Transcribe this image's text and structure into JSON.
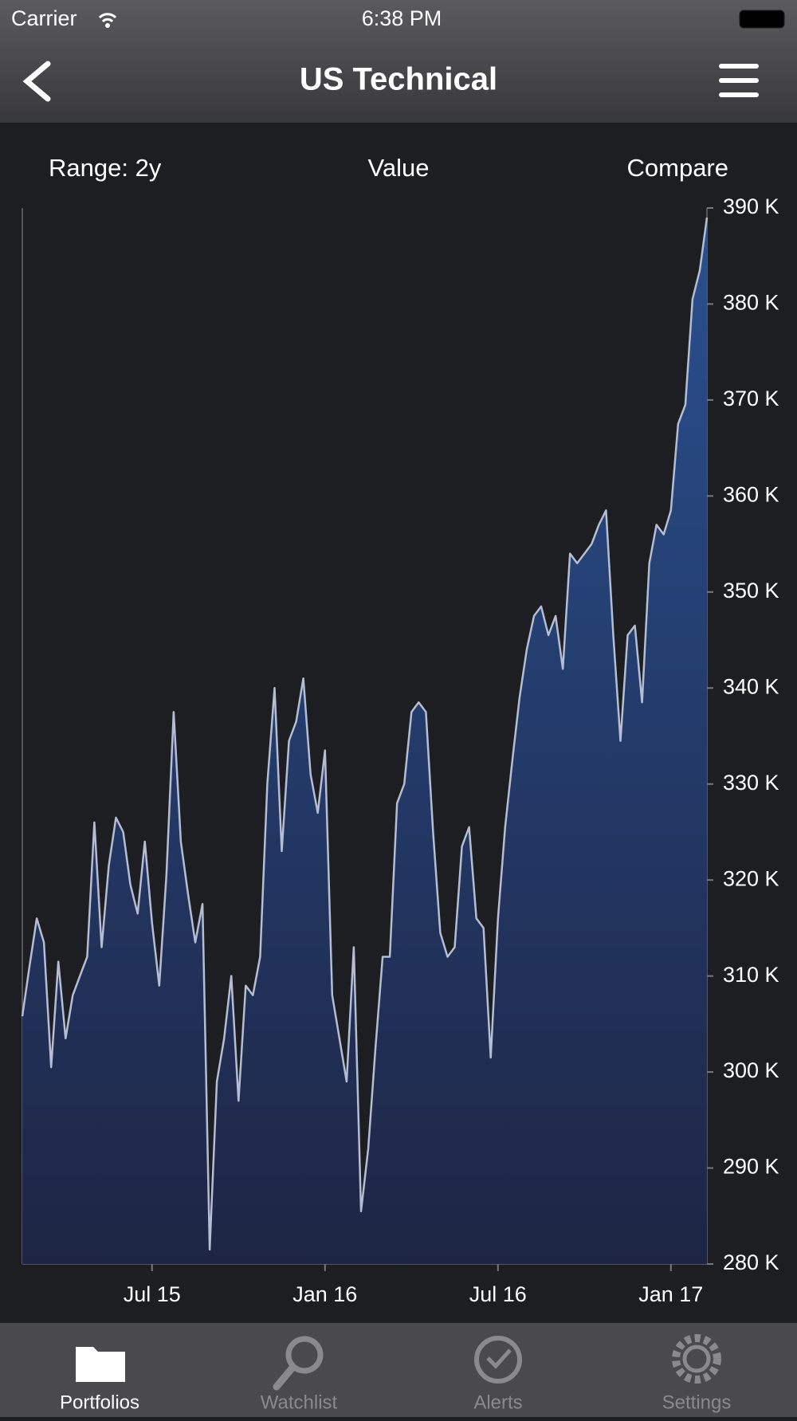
{
  "status_bar": {
    "carrier": "Carrier",
    "time": "6:38 PM"
  },
  "nav": {
    "title": "US Technical"
  },
  "controls": [
    "Range: 2y",
    "Value",
    "Compare"
  ],
  "chart_data": {
    "type": "area",
    "categories": [
      null,
      null,
      null,
      null,
      null,
      null,
      null,
      null,
      null,
      null,
      null,
      null,
      null,
      null,
      null,
      null,
      null,
      null,
      "Jul 15",
      null,
      null,
      null,
      null,
      null,
      null,
      null,
      null,
      null,
      null,
      null,
      null,
      null,
      null,
      null,
      null,
      null,
      null,
      null,
      null,
      null,
      null,
      null,
      "Jan 16",
      null,
      null,
      null,
      null,
      null,
      null,
      null,
      null,
      null,
      null,
      null,
      null,
      null,
      null,
      null,
      null,
      null,
      null,
      null,
      null,
      null,
      null,
      null,
      "Jul 16",
      null,
      null,
      null,
      null,
      null,
      null,
      null,
      null,
      null,
      null,
      null,
      null,
      null,
      null,
      null,
      null,
      null,
      null,
      null,
      null,
      null,
      null,
      null,
      "Jan 17",
      null,
      null,
      null,
      null,
      null
    ],
    "values": [
      305800,
      311000,
      316000,
      313500,
      300500,
      311500,
      303500,
      308000,
      310000,
      312000,
      326000,
      313000,
      321500,
      326500,
      325000,
      319500,
      316500,
      324000,
      315500,
      309000,
      320500,
      337500,
      324000,
      318500,
      313500,
      317500,
      281500,
      299000,
      303500,
      310000,
      297000,
      309000,
      308000,
      312000,
      330000,
      340000,
      323000,
      334500,
      336500,
      341000,
      331000,
      327000,
      333500,
      308000,
      303500,
      299000,
      313000,
      285500,
      292000,
      302500,
      312000,
      312000,
      328000,
      330000,
      337500,
      338500,
      337500,
      325000,
      314500,
      312000,
      313000,
      323500,
      325500,
      316000,
      315000,
      301500,
      316000,
      325500,
      332500,
      339000,
      344000,
      347500,
      348500,
      345500,
      347500,
      342000,
      354000,
      353000,
      354000,
      355000,
      357000,
      358500,
      345500,
      334500,
      345500,
      346500,
      338500,
      353000,
      357000,
      356000,
      358500,
      367500,
      369500,
      380500,
      383500,
      389000
    ],
    "color": "#b4bdd3",
    "ylim": [
      280000,
      390000
    ],
    "yticks": [
      {
        "value": 280000,
        "label": "280 K"
      },
      {
        "value": 290000,
        "label": "290 K"
      },
      {
        "value": 300000,
        "label": "300 K"
      },
      {
        "value": 310000,
        "label": "310 K"
      },
      {
        "value": 320000,
        "label": "320 K"
      },
      {
        "value": 330000,
        "label": "330 K"
      },
      {
        "value": 340000,
        "label": "340 K"
      },
      {
        "value": 350000,
        "label": "350 K"
      },
      {
        "value": 360000,
        "label": "360 K"
      },
      {
        "value": 370000,
        "label": "370 K"
      },
      {
        "value": 380000,
        "label": "380 K"
      },
      {
        "value": 390000,
        "label": "390 K"
      }
    ]
  },
  "tabs": [
    "Portfolios",
    "Watchlist",
    "Alerts",
    "Settings"
  ]
}
